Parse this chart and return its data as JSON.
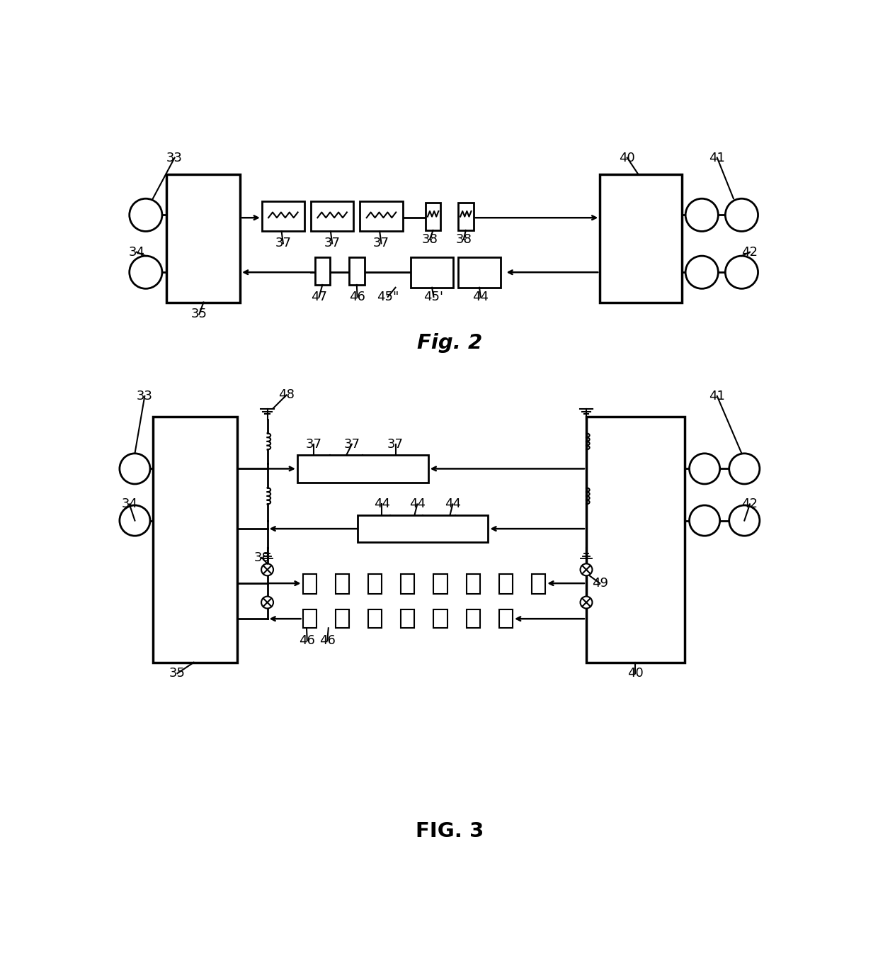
{
  "bg_color": "#ffffff",
  "line_color": "#000000",
  "fig_width": 12.4,
  "fig_height": 13.73
}
